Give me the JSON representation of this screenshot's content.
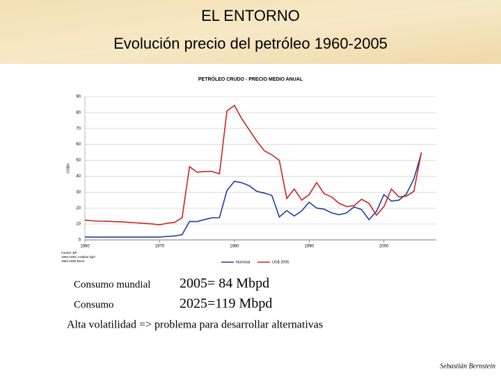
{
  "header": {
    "title": [
      "EL ENTORNO",
      "Evolución precio del petróleo 1960-2005"
    ]
  },
  "chart_data": {
    "type": "line",
    "title": "PETRÓLEO CRUDO - PRECIO MEDIO ANUAL",
    "y_label": "US$/b",
    "source": [
      "Fuente: BP",
      "1960-1983: Arabian light",
      "1984-2005 Brent"
    ],
    "x": [
      1960,
      1961,
      1962,
      1963,
      1964,
      1965,
      1966,
      1967,
      1968,
      1969,
      1970,
      1971,
      1972,
      1973,
      1974,
      1975,
      1976,
      1977,
      1978,
      1979,
      1980,
      1981,
      1982,
      1983,
      1984,
      1985,
      1986,
      1987,
      1988,
      1989,
      1990,
      1991,
      1992,
      1993,
      1994,
      1995,
      1996,
      1997,
      1998,
      1999,
      2000,
      2001,
      2002,
      2003,
      2004,
      2005
    ],
    "series": [
      {
        "name": "Nominal",
        "color": "#1f3d9c",
        "values": [
          1.9,
          1.8,
          1.8,
          1.8,
          1.8,
          1.8,
          1.8,
          1.8,
          1.8,
          1.8,
          1.8,
          2.2,
          2.5,
          3.3,
          11.6,
          11.5,
          12.8,
          13.9,
          14.0,
          31,
          36.8,
          35.9,
          34,
          30.5,
          29.4,
          28,
          14.4,
          18.4,
          15,
          18.2,
          23.7,
          20,
          19.3,
          17,
          15.8,
          17,
          20.7,
          19.1,
          12.7,
          17.9,
          28.5,
          24.4,
          25,
          28.8,
          38.3,
          54.5
        ]
      },
      {
        "name": "US$ 2005",
        "color": "#cc2222",
        "values": [
          12.5,
          12,
          11.8,
          11.7,
          11.5,
          11.3,
          11,
          10.7,
          10.4,
          10,
          9.5,
          10.5,
          11,
          14,
          46,
          42.5,
          43,
          43,
          41.5,
          81,
          84.5,
          76,
          69,
          62,
          56,
          53.5,
          50,
          26,
          32,
          25,
          28.5,
          36,
          29,
          27,
          23,
          21,
          21.5,
          25.5,
          23,
          15.5,
          21,
          32,
          27,
          27.5,
          30.5,
          55
        ]
      }
    ],
    "xlim": [
      1960,
      2007
    ],
    "xticks": [
      1960,
      1970,
      1980,
      1990,
      2000
    ],
    "ylim": [
      0,
      90
    ],
    "yticks": [
      0,
      10,
      20,
      30,
      40,
      50,
      60,
      70,
      80,
      90
    ],
    "grid": true
  },
  "notes": [
    {
      "label": "Consumo mundial",
      "value": "2005= 84 Mbpd"
    },
    {
      "label": "Consumo",
      "value": "2025=119 Mbpd"
    }
  ],
  "conclusion": "Alta volatilidad => problema para desarrollar alternativas",
  "author": "Sebastián Bernstein"
}
